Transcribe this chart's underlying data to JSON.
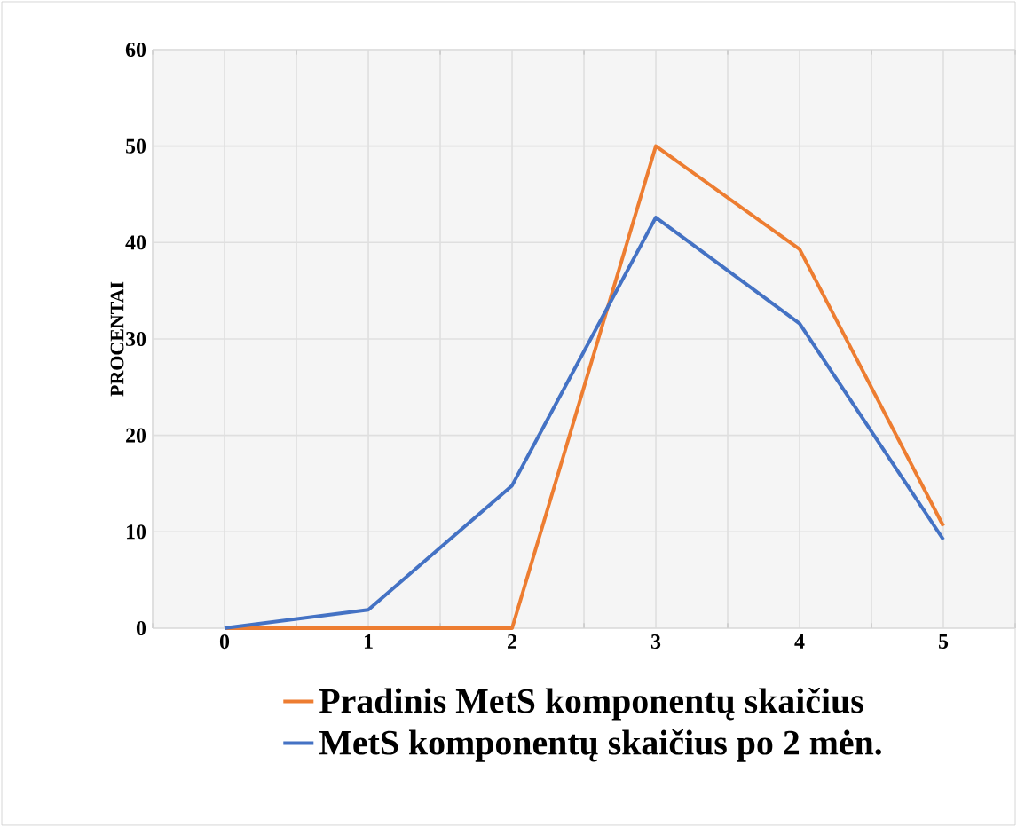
{
  "chart_data": {
    "type": "line",
    "ylabel": "PROCENTAI",
    "categories": [
      "0",
      "1",
      "2",
      "3",
      "4",
      "5"
    ],
    "series": [
      {
        "name": "Pradinis MetS komponentų skaičius",
        "color": "#ed7d31",
        "values": [
          0,
          0,
          0,
          50,
          39.3,
          10.6
        ]
      },
      {
        "name": "MetS komponentų skaičius po 2 mėn.",
        "color": "#4472c4",
        "values": [
          0,
          1.9,
          14.8,
          42.6,
          31.6,
          9.2
        ]
      }
    ],
    "ylim": [
      0,
      60
    ],
    "yticks": [
      0,
      10,
      20,
      30,
      40,
      50,
      60
    ],
    "grid": true,
    "legend": "bottom",
    "marker": "none",
    "line_style": "solid"
  }
}
